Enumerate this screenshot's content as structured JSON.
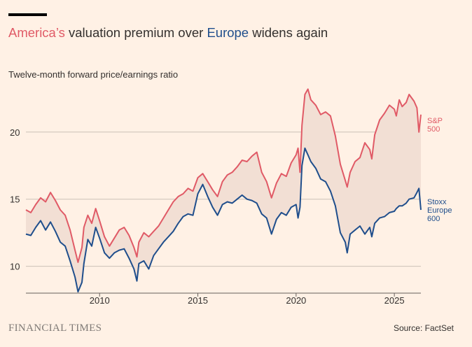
{
  "header": {
    "title_us": "America’s",
    "title_mid": " valuation premium over ",
    "title_eu": "Europe",
    "title_end": " widens again",
    "subtitle": "Twelve-month forward price/earnings ratio"
  },
  "footer": {
    "logo": "FINANCIAL TIMES",
    "source": "Source: FactSet"
  },
  "colors": {
    "sp500": "#e05a66",
    "stoxx": "#1f4e8c",
    "fill": "#f2dfd4",
    "grid": "#ccc1b7",
    "background": "#fff1e5"
  },
  "chart_data": {
    "type": "line",
    "title": "America’s valuation premium over Europe widens again",
    "ylabel": "Twelve-month forward price/earnings ratio",
    "xlim": [
      2006.25,
      2026.35
    ],
    "ylim": [
      8,
      24
    ],
    "yticks": [
      10,
      15,
      20
    ],
    "xticks": [
      2010,
      2015,
      2020,
      2025
    ],
    "shaded_between_series": true,
    "series": [
      {
        "name": "S&P 500",
        "label_lines": [
          "S&P",
          "500"
        ],
        "x": [
          2006.25,
          2006.5,
          2006.75,
          2007.0,
          2007.25,
          2007.5,
          2007.75,
          2008.0,
          2008.25,
          2008.5,
          2008.75,
          2008.9,
          2009.1,
          2009.2,
          2009.4,
          2009.6,
          2009.8,
          2010.0,
          2010.25,
          2010.5,
          2010.75,
          2011.0,
          2011.25,
          2011.5,
          2011.75,
          2011.9,
          2012.0,
          2012.25,
          2012.5,
          2012.75,
          2013.0,
          2013.25,
          2013.5,
          2013.75,
          2014.0,
          2014.25,
          2014.5,
          2014.75,
          2015.0,
          2015.25,
          2015.5,
          2015.75,
          2016.0,
          2016.25,
          2016.5,
          2016.75,
          2017.0,
          2017.25,
          2017.5,
          2017.75,
          2018.0,
          2018.25,
          2018.5,
          2018.75,
          2019.0,
          2019.25,
          2019.5,
          2019.75,
          2020.0,
          2020.1,
          2020.2,
          2020.3,
          2020.45,
          2020.6,
          2020.75,
          2021.0,
          2021.25,
          2021.5,
          2021.75,
          2022.0,
          2022.25,
          2022.5,
          2022.6,
          2022.75,
          2023.0,
          2023.25,
          2023.5,
          2023.75,
          2023.85,
          2024.0,
          2024.25,
          2024.5,
          2024.75,
          2025.0,
          2025.1,
          2025.25,
          2025.4,
          2025.6,
          2025.75,
          2026.0,
          2026.15,
          2026.25,
          2026.35
        ],
        "values": [
          14.2,
          14.0,
          14.6,
          15.1,
          14.8,
          15.5,
          14.9,
          14.2,
          13.8,
          12.7,
          11.2,
          10.3,
          11.4,
          12.9,
          13.8,
          13.2,
          14.3,
          13.4,
          12.2,
          11.5,
          12.1,
          12.7,
          12.9,
          12.3,
          11.4,
          10.7,
          11.8,
          12.5,
          12.2,
          12.6,
          13.0,
          13.6,
          14.2,
          14.8,
          15.2,
          15.4,
          15.8,
          15.6,
          16.6,
          16.9,
          16.3,
          15.7,
          15.2,
          16.3,
          16.8,
          17.0,
          17.4,
          17.9,
          17.8,
          18.2,
          18.5,
          17.0,
          16.3,
          15.1,
          16.2,
          16.9,
          16.7,
          17.7,
          18.3,
          18.8,
          17.0,
          20.5,
          22.8,
          23.2,
          22.4,
          22.0,
          21.3,
          21.5,
          21.2,
          19.7,
          17.6,
          16.4,
          15.9,
          17.0,
          17.8,
          18.1,
          19.2,
          18.7,
          18.0,
          19.8,
          20.9,
          21.4,
          22.0,
          21.7,
          21.2,
          22.4,
          21.9,
          22.2,
          22.8,
          22.3,
          21.8,
          20.0,
          21.3
        ]
      },
      {
        "name": "Stoxx Europe 600",
        "label_lines": [
          "Stoxx",
          "Europe",
          "600"
        ],
        "x": [
          2006.25,
          2006.5,
          2006.75,
          2007.0,
          2007.25,
          2007.5,
          2007.75,
          2008.0,
          2008.25,
          2008.5,
          2008.75,
          2008.9,
          2009.1,
          2009.2,
          2009.4,
          2009.6,
          2009.8,
          2010.0,
          2010.25,
          2010.5,
          2010.75,
          2011.0,
          2011.25,
          2011.5,
          2011.75,
          2011.9,
          2012.0,
          2012.25,
          2012.5,
          2012.75,
          2013.0,
          2013.25,
          2013.5,
          2013.75,
          2014.0,
          2014.25,
          2014.5,
          2014.75,
          2015.0,
          2015.25,
          2015.5,
          2015.75,
          2016.0,
          2016.25,
          2016.5,
          2016.75,
          2017.0,
          2017.25,
          2017.5,
          2017.75,
          2018.0,
          2018.25,
          2018.5,
          2018.75,
          2019.0,
          2019.25,
          2019.5,
          2019.75,
          2020.0,
          2020.1,
          2020.2,
          2020.3,
          2020.45,
          2020.6,
          2020.75,
          2021.0,
          2021.25,
          2021.5,
          2021.75,
          2022.0,
          2022.25,
          2022.5,
          2022.6,
          2022.75,
          2023.0,
          2023.25,
          2023.5,
          2023.75,
          2023.85,
          2024.0,
          2024.25,
          2024.5,
          2024.75,
          2025.0,
          2025.1,
          2025.25,
          2025.4,
          2025.6,
          2025.75,
          2026.0,
          2026.15,
          2026.25,
          2026.35
        ],
        "values": [
          12.4,
          12.3,
          12.9,
          13.4,
          12.7,
          13.3,
          12.6,
          11.8,
          11.5,
          10.4,
          9.2,
          8.1,
          8.8,
          10.2,
          12.0,
          11.5,
          12.9,
          12.1,
          11.0,
          10.6,
          11.0,
          11.2,
          11.3,
          10.6,
          9.8,
          8.9,
          10.2,
          10.4,
          9.8,
          10.8,
          11.3,
          11.8,
          12.2,
          12.6,
          13.2,
          13.7,
          13.9,
          13.8,
          15.4,
          16.1,
          15.2,
          14.4,
          13.8,
          14.6,
          14.8,
          14.7,
          15.0,
          15.3,
          15.0,
          14.9,
          14.7,
          13.9,
          13.6,
          12.4,
          13.5,
          14.0,
          13.8,
          14.4,
          14.6,
          13.6,
          14.4,
          17.5,
          18.8,
          18.3,
          17.8,
          17.3,
          16.5,
          16.3,
          15.6,
          14.5,
          12.5,
          11.8,
          11.0,
          12.4,
          12.7,
          13.0,
          12.4,
          12.9,
          12.2,
          13.2,
          13.6,
          13.7,
          14.0,
          14.1,
          14.3,
          14.5,
          14.5,
          14.7,
          15.0,
          15.1,
          15.5,
          15.8,
          14.2
        ]
      }
    ]
  }
}
